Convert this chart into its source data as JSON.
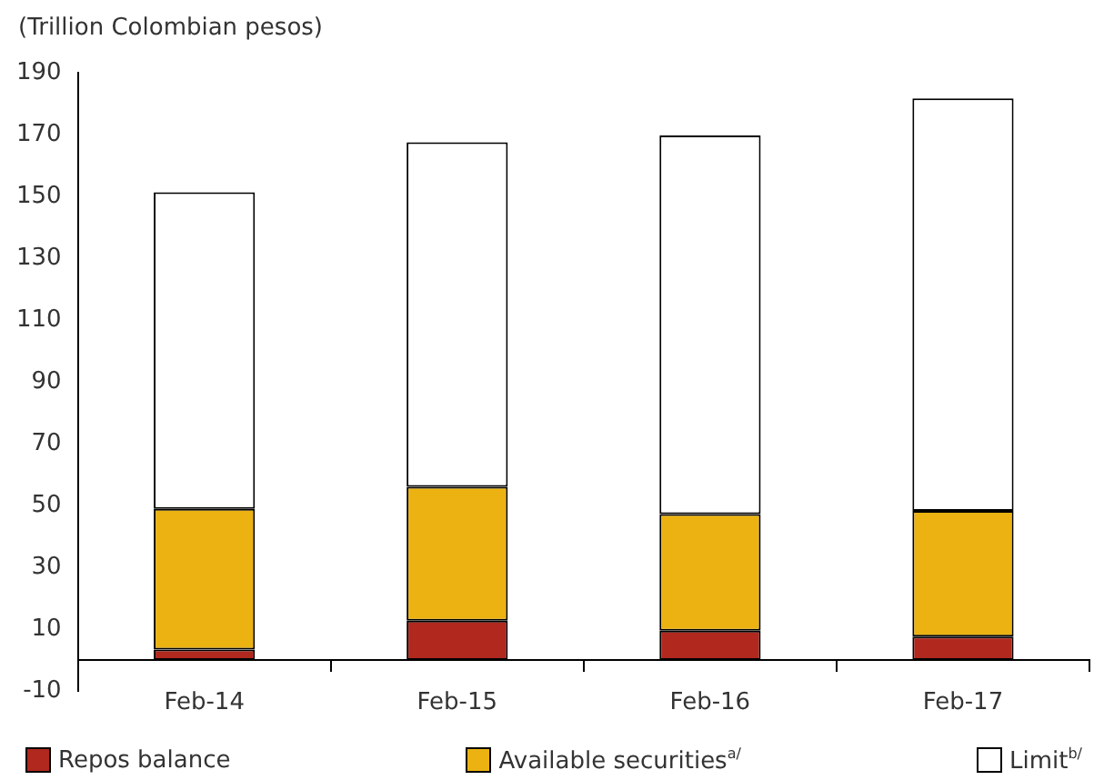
{
  "chart_data": {
    "type": "bar",
    "ylabel": "(Trillion Colombian pesos)",
    "categories": [
      "Feb-14",
      "Feb-15",
      "Feb-16",
      "Feb-17"
    ],
    "stacked": true,
    "series": [
      {
        "name": "Repos balance",
        "color": "#b0281e",
        "values": [
          3.4,
          12.7,
          9.5,
          7.6
        ]
      },
      {
        "name": "Available securities$^{a/}$",
        "color": "#ebb211",
        "values": [
          45.5,
          43.3,
          37.7,
          40.6
        ]
      },
      {
        "name": "Limit$^{b/}$",
        "color": "#ffffff",
        "values": [
          102.4,
          111.5,
          122.5,
          133.5
        ]
      }
    ],
    "ylim": [
      -10,
      190
    ],
    "yticks": [
      -10,
      10,
      30,
      50,
      70,
      90,
      110,
      130,
      150,
      170,
      190
    ],
    "grid": false,
    "legend": "bottom"
  }
}
